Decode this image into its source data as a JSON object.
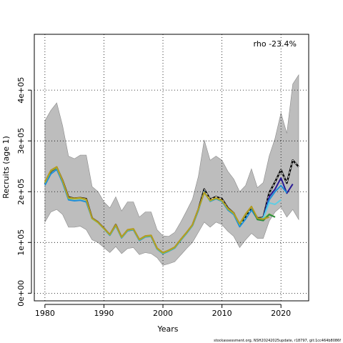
{
  "chart_data": {
    "type": "line",
    "xlabel": "Years",
    "ylabel": "Recruits (age 1)",
    "annotation": "rho -23.4%",
    "footer": "stockassessment.org, NSH20242025update, r18797, git:1cc464b8086f",
    "xlim": [
      1978.2,
      2024.7
    ],
    "ylim": [
      -15000,
      510000
    ],
    "x_ticks": [
      1980,
      1990,
      2000,
      2010,
      2020
    ],
    "y_ticks": [
      {
        "value": 0,
        "label": "0e+00"
      },
      {
        "value": 100000,
        "label": "1e+05"
      },
      {
        "value": 200000,
        "label": "2e+05"
      },
      {
        "value": 300000,
        "label": "3e+05"
      },
      {
        "value": 400000,
        "label": "4e+05"
      }
    ],
    "grid": true,
    "confidence_band": {
      "x": [
        1980,
        1981,
        1982,
        1983,
        1984,
        1985,
        1986,
        1987,
        1988,
        1989,
        1990,
        1991,
        1992,
        1993,
        1994,
        1995,
        1996,
        1997,
        1998,
        1999,
        2000,
        2001,
        2002,
        2003,
        2004,
        2005,
        2006,
        2007,
        2008,
        2009,
        2010,
        2011,
        2012,
        2013,
        2014,
        2015,
        2016,
        2017,
        2018,
        2019,
        2020,
        2021,
        2022,
        2023
      ],
      "lower": [
        140000,
        160000,
        165000,
        155000,
        130000,
        130000,
        132000,
        125000,
        105000,
        100000,
        90000,
        80000,
        92000,
        78000,
        88000,
        90000,
        76000,
        80000,
        78000,
        70000,
        55000,
        58000,
        62000,
        75000,
        88000,
        100000,
        120000,
        140000,
        130000,
        140000,
        135000,
        122000,
        112000,
        90000,
        105000,
        118000,
        108000,
        108000,
        142000,
        160000,
        170000,
        150000,
        165000,
        145000
      ],
      "upper": [
        340000,
        360000,
        375000,
        330000,
        270000,
        265000,
        272000,
        272000,
        210000,
        200000,
        180000,
        168000,
        190000,
        162000,
        180000,
        180000,
        150000,
        160000,
        160000,
        125000,
        113000,
        112000,
        120000,
        140000,
        162000,
        185000,
        230000,
        302000,
        262000,
        270000,
        262000,
        240000,
        225000,
        200000,
        212000,
        245000,
        208000,
        218000,
        270000,
        305000,
        355000,
        315000,
        412000,
        430000
      ]
    },
    "series": [
      {
        "color": "#000000",
        "dashed": true,
        "x": [
          1980,
          1981,
          1982,
          1983,
          1984,
          1985,
          1986,
          1987,
          1988,
          1989,
          1990,
          1991,
          1992,
          1993,
          1994,
          1995,
          1996,
          1997,
          1998,
          1999,
          2000,
          2001,
          2002,
          2003,
          2004,
          2005,
          2006,
          2007,
          2008,
          2009,
          2010,
          2011,
          2012,
          2013,
          2014,
          2015,
          2016,
          2017,
          2018,
          2019,
          2020,
          2021,
          2022,
          2023
        ],
        "y": [
          215000,
          240000,
          248000,
          222000,
          189000,
          187000,
          188000,
          186000,
          148000,
          140000,
          128000,
          115000,
          135000,
          110000,
          124000,
          126000,
          105000,
          112000,
          113000,
          88000,
          79000,
          84000,
          90000,
          105000,
          119000,
          134000,
          165000,
          205000,
          185000,
          190000,
          186000,
          168000,
          158000,
          133000,
          149000,
          168000,
          148000,
          149000,
          198000,
          219000,
          243000,
          217000,
          262000,
          249000
        ]
      },
      {
        "color": "#2a1a96",
        "x": [
          2017,
          2018,
          2019,
          2020,
          2021,
          2022
        ],
        "y": [
          149000,
          190000,
          205000,
          227000,
          197000,
          215000
        ]
      },
      {
        "color": "#1e8fd6",
        "x": [
          1980,
          1981,
          1982,
          1983,
          1984,
          1985,
          1986,
          1987,
          1988,
          1989,
          1990,
          1991,
          1992,
          1993,
          1994,
          1995,
          1996,
          1997,
          1998,
          1999,
          2000,
          2001,
          2002,
          2003,
          2004,
          2005,
          2006,
          2007,
          2008,
          2009,
          2010,
          2011,
          2012,
          2013,
          2014,
          2015,
          2016,
          2017,
          2018,
          2019,
          2020,
          2021
        ],
        "y": [
          213000,
          235000,
          244000,
          218000,
          184000,
          182000,
          183000,
          180000,
          147000,
          139000,
          127000,
          114000,
          133000,
          109000,
          123000,
          125000,
          104000,
          111000,
          112000,
          87000,
          78000,
          83000,
          89000,
          104000,
          118000,
          133000,
          163000,
          200000,
          181000,
          186000,
          181000,
          164000,
          155000,
          131000,
          146000,
          164000,
          146000,
          148000,
          184000,
          200000,
          212000,
          198000
        ]
      },
      {
        "color": "#5fcde4",
        "x": [
          2016,
          2017,
          2018,
          2019,
          2020
        ],
        "y": [
          147000,
          148000,
          178000,
          175000,
          184000
        ]
      },
      {
        "color": "#8bd24a",
        "x": [
          1980,
          1981,
          1982,
          1983,
          1984,
          1985,
          1986,
          1987,
          1988,
          1989,
          1990,
          1991,
          1992,
          1993,
          1994,
          1995,
          1996,
          1997,
          1998,
          1999,
          2000,
          2001,
          2002,
          2003,
          2004,
          2005,
          2006,
          2007,
          2008,
          2009,
          2010,
          2011,
          2012,
          2013,
          2014,
          2015,
          2016,
          2017,
          2018,
          2019
        ],
        "y": [
          218000,
          241000,
          248000,
          221000,
          187000,
          186000,
          187000,
          184000,
          147000,
          139000,
          127000,
          115000,
          134000,
          110000,
          124000,
          126000,
          105000,
          112000,
          113000,
          88000,
          79000,
          84000,
          90000,
          105000,
          119000,
          134000,
          165000,
          198000,
          182000,
          187000,
          182000,
          166000,
          157000,
          136000,
          155000,
          171000,
          147000,
          146000,
          156000,
          150000
        ]
      },
      {
        "color": "#2e8b3d",
        "x": [
          2015,
          2016,
          2017,
          2018,
          2019
        ],
        "y": [
          170000,
          145000,
          143000,
          155000,
          150000
        ]
      },
      {
        "color": "#b59a22",
        "x": [
          1980,
          1981,
          1982,
          1983,
          1984,
          1985,
          1986,
          1987,
          1988,
          1989,
          1990,
          1991,
          1992,
          1993,
          1994,
          1995,
          1996,
          1997,
          1998,
          1999,
          2000,
          2001,
          2002,
          2003,
          2004,
          2005,
          2006,
          2007,
          2008,
          2009,
          2010,
          2011,
          2012,
          2013,
          2014,
          2015,
          2016,
          2017,
          2018
        ],
        "y": [
          219000,
          242000,
          249000,
          222000,
          188000,
          187000,
          188000,
          185000,
          148000,
          140000,
          128000,
          116000,
          135000,
          111000,
          125000,
          127000,
          106000,
          113000,
          114000,
          89000,
          80000,
          85000,
          91000,
          106000,
          120000,
          135000,
          166000,
          199000,
          183000,
          188000,
          183000,
          167000,
          158000,
          137000,
          156000,
          171000,
          148000,
          146000,
          150000
        ]
      }
    ]
  }
}
